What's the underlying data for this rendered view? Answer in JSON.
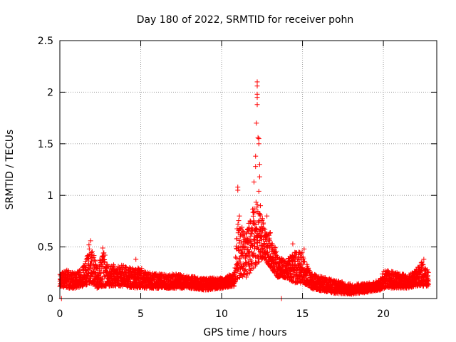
{
  "chart_data": {
    "type": "scatter",
    "title": "Day 180 of 2022, SRMTID for receiver pohn",
    "xlabel": "GPS time / hours",
    "ylabel": "SRMTID / TECUs",
    "xlim": [
      0,
      23.3
    ],
    "ylim": [
      0,
      2.5
    ],
    "xticks": [
      0,
      5,
      10,
      15,
      20
    ],
    "xtick_labels": [
      "0",
      "5",
      "10",
      "15",
      "20"
    ],
    "yticks": [
      0,
      0.5,
      1,
      1.5,
      2,
      2.5
    ],
    "ytick_labels": [
      "0",
      "0.5",
      "1",
      "1.5",
      "2",
      "2.5"
    ],
    "grid": true,
    "marker": "+",
    "color": "#ff0000",
    "series": [
      {
        "name": "SRMTID",
        "envelope": [
          {
            "t": 0.0,
            "lo": 0.12,
            "hi": 0.25
          },
          {
            "t": 0.5,
            "lo": 0.1,
            "hi": 0.28
          },
          {
            "t": 1.0,
            "lo": 0.1,
            "hi": 0.25
          },
          {
            "t": 1.5,
            "lo": 0.12,
            "hi": 0.32
          },
          {
            "t": 1.9,
            "lo": 0.15,
            "hi": 0.55
          },
          {
            "t": 2.3,
            "lo": 0.1,
            "hi": 0.3
          },
          {
            "t": 2.7,
            "lo": 0.12,
            "hi": 0.48
          },
          {
            "t": 3.0,
            "lo": 0.12,
            "hi": 0.32
          },
          {
            "t": 3.5,
            "lo": 0.12,
            "hi": 0.33
          },
          {
            "t": 4.0,
            "lo": 0.12,
            "hi": 0.32
          },
          {
            "t": 4.5,
            "lo": 0.1,
            "hi": 0.3
          },
          {
            "t": 5.0,
            "lo": 0.1,
            "hi": 0.3
          },
          {
            "t": 6.0,
            "lo": 0.1,
            "hi": 0.24
          },
          {
            "t": 7.0,
            "lo": 0.1,
            "hi": 0.24
          },
          {
            "t": 8.0,
            "lo": 0.1,
            "hi": 0.22
          },
          {
            "t": 9.0,
            "lo": 0.08,
            "hi": 0.2
          },
          {
            "t": 10.0,
            "lo": 0.1,
            "hi": 0.2
          },
          {
            "t": 10.8,
            "lo": 0.12,
            "hi": 0.25
          },
          {
            "t": 11.0,
            "lo": 0.2,
            "hi": 0.8
          },
          {
            "t": 11.5,
            "lo": 0.2,
            "hi": 0.6
          },
          {
            "t": 12.0,
            "lo": 0.3,
            "hi": 1.0
          },
          {
            "t": 12.6,
            "lo": 0.4,
            "hi": 0.75
          },
          {
            "t": 13.0,
            "lo": 0.3,
            "hi": 0.65
          },
          {
            "t": 13.5,
            "lo": 0.2,
            "hi": 0.4
          },
          {
            "t": 14.0,
            "lo": 0.2,
            "hi": 0.38
          },
          {
            "t": 14.5,
            "lo": 0.15,
            "hi": 0.45
          },
          {
            "t": 15.0,
            "lo": 0.15,
            "hi": 0.45
          },
          {
            "t": 15.5,
            "lo": 0.1,
            "hi": 0.25
          },
          {
            "t": 16.0,
            "lo": 0.08,
            "hi": 0.22
          },
          {
            "t": 17.0,
            "lo": 0.05,
            "hi": 0.18
          },
          {
            "t": 18.0,
            "lo": 0.04,
            "hi": 0.14
          },
          {
            "t": 19.0,
            "lo": 0.06,
            "hi": 0.15
          },
          {
            "t": 19.8,
            "lo": 0.08,
            "hi": 0.18
          },
          {
            "t": 20.0,
            "lo": 0.1,
            "hi": 0.28
          },
          {
            "t": 21.0,
            "lo": 0.1,
            "hi": 0.25
          },
          {
            "t": 21.5,
            "lo": 0.1,
            "hi": 0.22
          },
          {
            "t": 22.0,
            "lo": 0.12,
            "hi": 0.28
          },
          {
            "t": 22.4,
            "lo": 0.12,
            "hi": 0.36
          },
          {
            "t": 22.8,
            "lo": 0.12,
            "hi": 0.26
          }
        ],
        "notable_points": [
          {
            "x": 0.1,
            "y": 0.0
          },
          {
            "x": 1.8,
            "y": 0.52
          },
          {
            "x": 1.9,
            "y": 0.56
          },
          {
            "x": 2.65,
            "y": 0.49
          },
          {
            "x": 4.7,
            "y": 0.38
          },
          {
            "x": 11.0,
            "y": 1.08
          },
          {
            "x": 11.0,
            "y": 1.05
          },
          {
            "x": 11.1,
            "y": 0.8
          },
          {
            "x": 12.0,
            "y": 0.87
          },
          {
            "x": 12.0,
            "y": 1.13
          },
          {
            "x": 12.1,
            "y": 1.28
          },
          {
            "x": 12.1,
            "y": 1.38
          },
          {
            "x": 12.15,
            "y": 1.7
          },
          {
            "x": 12.2,
            "y": 2.1
          },
          {
            "x": 12.2,
            "y": 2.06
          },
          {
            "x": 12.2,
            "y": 1.98
          },
          {
            "x": 12.2,
            "y": 1.95
          },
          {
            "x": 12.2,
            "y": 1.88
          },
          {
            "x": 12.25,
            "y": 1.56
          },
          {
            "x": 12.3,
            "y": 1.55
          },
          {
            "x": 12.3,
            "y": 1.5
          },
          {
            "x": 12.35,
            "y": 1.3
          },
          {
            "x": 12.35,
            "y": 1.18
          },
          {
            "x": 12.3,
            "y": 1.04
          },
          {
            "x": 12.4,
            "y": 0.9
          },
          {
            "x": 12.5,
            "y": 0.76
          },
          {
            "x": 12.8,
            "y": 0.8
          },
          {
            "x": 13.7,
            "y": 0.0
          },
          {
            "x": 14.4,
            "y": 0.53
          },
          {
            "x": 15.1,
            "y": 0.48
          },
          {
            "x": 22.5,
            "y": 0.38
          }
        ]
      }
    ]
  }
}
